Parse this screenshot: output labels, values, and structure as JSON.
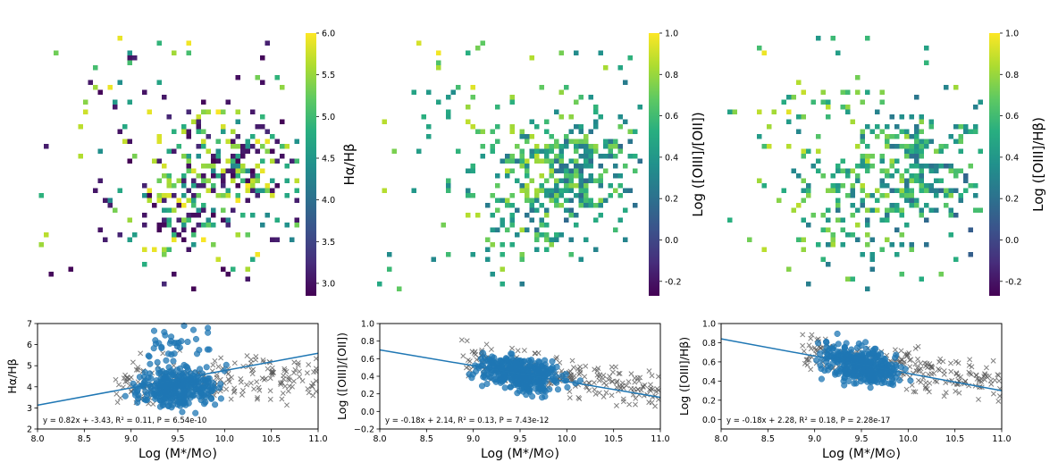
{
  "chart_data": [
    {
      "type": "heatmap",
      "panel": "top-left",
      "title": "",
      "colorbar": {
        "label": "Hα/Hβ",
        "range": [
          2.85,
          6.0
        ],
        "ticks": [
          "3.0",
          "3.5",
          "4.0",
          "4.5",
          "5.0",
          "5.5",
          "6.0"
        ],
        "tick_values": [
          3.0,
          3.5,
          4.0,
          4.5,
          5.0,
          5.5,
          6.0
        ],
        "colormap": "viridis"
      },
      "grid_on": false,
      "axes_visible": false,
      "seed": 11
    },
    {
      "type": "heatmap",
      "panel": "top-middle",
      "title": "",
      "colorbar": {
        "label": "Log ([OIII]/[OII])",
        "range": [
          -0.27,
          1.0
        ],
        "ticks": [
          "-0.2",
          "0.0",
          "0.2",
          "0.4",
          "0.6",
          "0.8",
          "1.0"
        ],
        "tick_values": [
          -0.2,
          0.0,
          0.2,
          0.4,
          0.6,
          0.8,
          1.0
        ],
        "colormap": "viridis"
      },
      "grid_on": false,
      "axes_visible": false,
      "seed": 23
    },
    {
      "type": "heatmap",
      "panel": "top-right",
      "title": "",
      "colorbar": {
        "label": "Log ([OIII]/Hβ)",
        "range": [
          -0.27,
          1.0
        ],
        "ticks": [
          "-0.2",
          "0.0",
          "0.2",
          "0.4",
          "0.6",
          "0.8",
          "1.0"
        ],
        "tick_values": [
          -0.2,
          0.0,
          0.2,
          0.4,
          0.6,
          0.8,
          1.0
        ],
        "colormap": "viridis"
      },
      "grid_on": false,
      "axes_visible": false,
      "seed": 37
    },
    {
      "type": "scatter",
      "panel": "bottom-left",
      "xlabel": "Log (M*/M⊙)",
      "ylabel": "Hα/Hβ",
      "xlim": [
        8.0,
        11.0
      ],
      "ylim": [
        2,
        7
      ],
      "xticks": [
        "8.0",
        "8.5",
        "9.0",
        "9.5",
        "10.0",
        "10.5",
        "11.0"
      ],
      "xtick_values": [
        8.0,
        8.5,
        9.0,
        9.5,
        10.0,
        10.5,
        11.0
      ],
      "yticks": [
        "2",
        "3",
        "4",
        "5",
        "6",
        "7"
      ],
      "ytick_values": [
        2,
        3,
        4,
        5,
        6,
        7
      ],
      "series": [
        {
          "name": "blue points",
          "marker": "circle",
          "color": "#1f77b4"
        },
        {
          "name": "gray crosses",
          "marker": "x",
          "color": "#555555"
        }
      ],
      "fit": {
        "slope": 0.82,
        "intercept": -3.43,
        "line": [
          [
            8.0,
            3.13
          ],
          [
            11.0,
            5.59
          ]
        ]
      },
      "fit_text": "y = 0.82x + -3.43,  R² = 0.11,  P = 6.54e-10",
      "seed": 5
    },
    {
      "type": "scatter",
      "panel": "bottom-middle",
      "xlabel": "Log (M*/M⊙)",
      "ylabel": "Log ([OIII]/[OII])",
      "xlim": [
        8.0,
        11.0
      ],
      "ylim": [
        -0.2,
        1.0
      ],
      "xticks": [
        "8.0",
        "8.5",
        "9.0",
        "9.5",
        "10.0",
        "10.5",
        "11.0"
      ],
      "xtick_values": [
        8.0,
        8.5,
        9.0,
        9.5,
        10.0,
        10.5,
        11.0
      ],
      "yticks": [
        "−0.2",
        "0.0",
        "0.2",
        "0.4",
        "0.6",
        "0.8",
        "1.0"
      ],
      "ytick_values": [
        -0.2,
        0.0,
        0.2,
        0.4,
        0.6,
        0.8,
        1.0
      ],
      "series": [
        {
          "name": "blue points",
          "marker": "circle",
          "color": "#1f77b4"
        },
        {
          "name": "gray crosses",
          "marker": "x",
          "color": "#555555"
        }
      ],
      "fit": {
        "slope": -0.18,
        "intercept": 2.14,
        "line": [
          [
            8.0,
            0.7
          ],
          [
            11.0,
            0.16
          ]
        ]
      },
      "fit_text": "y = -0.18x + 2.14,  R² = 0.13,  P = 7.43e-12",
      "seed": 17
    },
    {
      "type": "scatter",
      "panel": "bottom-right",
      "xlabel": "Log (M*/M⊙)",
      "ylabel": "Log ([OIII]/Hβ)",
      "xlim": [
        8.0,
        11.0
      ],
      "ylim": [
        -0.1,
        1.0
      ],
      "xticks": [
        "8.0",
        "8.5",
        "9.0",
        "9.5",
        "10.0",
        "10.5",
        "11.0"
      ],
      "xtick_values": [
        8.0,
        8.5,
        9.0,
        9.5,
        10.0,
        10.5,
        11.0
      ],
      "yticks": [
        "0.0",
        "0.2",
        "0.4",
        "0.6",
        "0.8",
        "1.0"
      ],
      "ytick_values": [
        0.0,
        0.2,
        0.4,
        0.6,
        0.8,
        1.0
      ],
      "series": [
        {
          "name": "blue points",
          "marker": "circle",
          "color": "#1f77b4"
        },
        {
          "name": "gray crosses",
          "marker": "x",
          "color": "#555555"
        }
      ],
      "fit": {
        "slope": -0.18,
        "intercept": 2.28,
        "line": [
          [
            8.0,
            0.84
          ],
          [
            11.0,
            0.3
          ]
        ]
      },
      "fit_text": "y = -0.18x + 2.28,  R² = 0.18,  P = 2.28e-17",
      "seed": 29
    }
  ]
}
